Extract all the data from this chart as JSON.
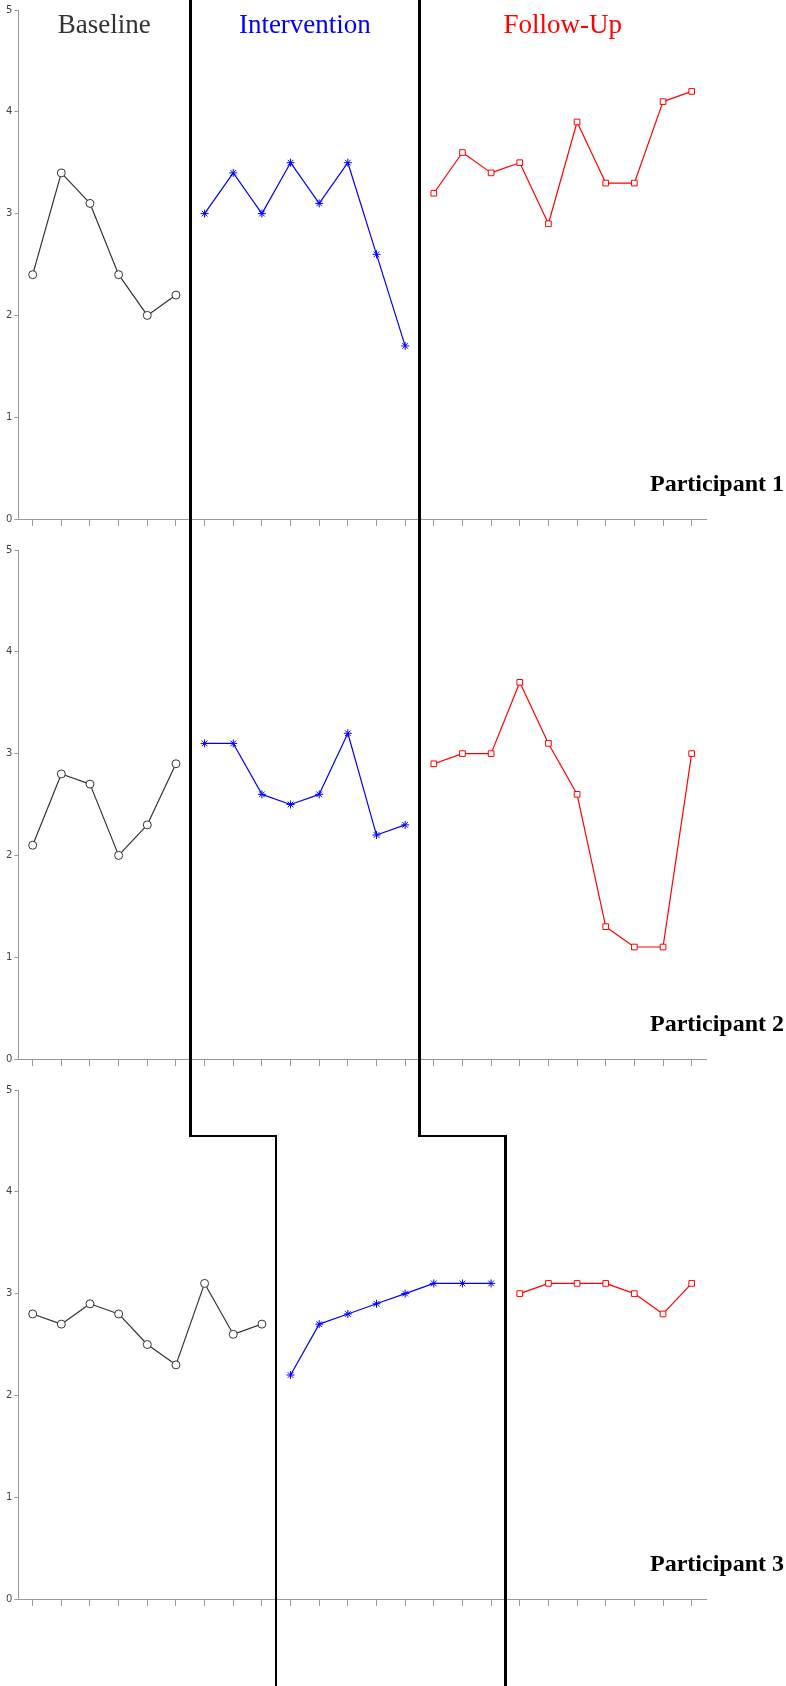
{
  "chart_data": [
    {
      "type": "line",
      "annotations": [
        "Participant 1"
      ],
      "categories": [
        null,
        null,
        null,
        null,
        null,
        null,
        null,
        null,
        null,
        null,
        null,
        null,
        null,
        null,
        null,
        null,
        null,
        null,
        null,
        null,
        null,
        null,
        null,
        null
      ],
      "ylim": [
        0,
        5
      ],
      "yticks": [
        0,
        1,
        2,
        3,
        4,
        5
      ],
      "tick_labels": "y",
      "legend": false,
      "series": [
        {
          "name": "Baseline",
          "color": "#333333",
          "marker": "circle",
          "values": [
            2.4,
            3.4,
            3.1,
            2.4,
            2.0,
            2.2,
            null,
            null,
            null,
            null,
            null,
            null,
            null,
            null,
            null,
            null,
            null,
            null,
            null,
            null,
            null,
            null,
            null,
            null
          ]
        },
        {
          "name": "Intervention",
          "color": "#0000ff",
          "marker": "cross",
          "values": [
            null,
            null,
            null,
            null,
            null,
            null,
            3.0,
            3.4,
            3.0,
            3.5,
            3.1,
            3.5,
            2.6,
            1.7,
            null,
            null,
            null,
            null,
            null,
            null,
            null,
            null,
            null,
            null
          ]
        },
        {
          "name": "Follow-Up",
          "color": "#ff0000",
          "marker": "square",
          "values": [
            null,
            null,
            null,
            null,
            null,
            null,
            null,
            null,
            null,
            null,
            null,
            null,
            null,
            null,
            3.2,
            3.6,
            3.4,
            3.5,
            2.9,
            3.9,
            3.3,
            3.3,
            4.1,
            4.2
          ]
        }
      ]
    },
    {
      "type": "line",
      "annotations": [
        "Participant 2"
      ],
      "categories": [
        null,
        null,
        null,
        null,
        null,
        null,
        null,
        null,
        null,
        null,
        null,
        null,
        null,
        null,
        null,
        null,
        null,
        null,
        null,
        null,
        null,
        null,
        null,
        null
      ],
      "ylim": [
        0,
        5
      ],
      "yticks": [
        0,
        1,
        2,
        3,
        4,
        5
      ],
      "tick_labels": "y",
      "legend": false,
      "series": [
        {
          "color": "#333333",
          "marker": "circle",
          "values": [
            2.1,
            2.8,
            2.7,
            2.0,
            2.3,
            2.9,
            null,
            null,
            null,
            null,
            null,
            null,
            null,
            null,
            null,
            null,
            null,
            null,
            null,
            null,
            null,
            null,
            null,
            null
          ]
        },
        {
          "color": "#0000ff",
          "marker": "cross",
          "values": [
            null,
            null,
            null,
            null,
            null,
            null,
            3.1,
            3.1,
            2.6,
            2.5,
            2.6,
            3.2,
            2.2,
            2.3,
            null,
            null,
            null,
            null,
            null,
            null,
            null,
            null,
            null,
            null
          ]
        },
        {
          "color": "#ff0000",
          "marker": "square",
          "values": [
            null,
            null,
            null,
            null,
            null,
            null,
            null,
            null,
            null,
            null,
            null,
            null,
            null,
            null,
            2.9,
            3.0,
            3.0,
            3.7,
            3.1,
            2.6,
            1.3,
            1.1,
            1.1,
            3.0
          ]
        }
      ]
    },
    {
      "type": "line",
      "annotations": [
        "Participant 3"
      ],
      "categories": [
        null,
        null,
        null,
        null,
        null,
        null,
        null,
        null,
        null,
        null,
        null,
        null,
        null,
        null,
        null,
        null,
        null,
        null,
        null,
        null,
        null,
        null,
        null,
        null
      ],
      "ylim": [
        0,
        5
      ],
      "yticks": [
        0,
        1,
        2,
        3,
        4,
        5
      ],
      "tick_labels": "y",
      "legend": false,
      "series": [
        {
          "color": "#333333",
          "marker": "circle",
          "values": [
            2.8,
            2.7,
            2.9,
            2.8,
            2.5,
            2.3,
            3.1,
            2.6,
            2.7,
            null,
            null,
            null,
            null,
            null,
            null,
            null,
            null,
            null,
            null,
            null,
            null,
            null,
            null,
            null
          ]
        },
        {
          "color": "#0000ff",
          "marker": "cross",
          "values": [
            null,
            null,
            null,
            null,
            null,
            null,
            null,
            null,
            null,
            2.2,
            2.7,
            2.8,
            2.9,
            3.0,
            3.1,
            3.1,
            3.1,
            null,
            null,
            null,
            null,
            null,
            null,
            null
          ]
        },
        {
          "color": "#ff0000",
          "marker": "square",
          "values": [
            null,
            null,
            null,
            null,
            null,
            null,
            null,
            null,
            null,
            null,
            null,
            null,
            null,
            null,
            null,
            null,
            null,
            3.0,
            3.1,
            3.1,
            3.1,
            3.0,
            2.8,
            3.1
          ]
        }
      ]
    }
  ]
}
